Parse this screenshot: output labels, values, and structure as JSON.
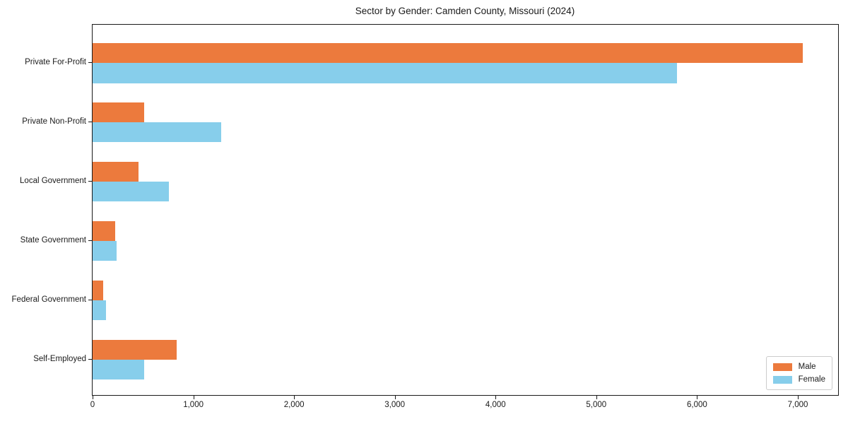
{
  "chart_data": {
    "type": "bar",
    "orientation": "horizontal",
    "title": "Sector by Gender: Camden County, Missouri (2024)",
    "categories": [
      "Private For-Profit",
      "Private Non-Profit",
      "Local Government",
      "State Government",
      "Federal Government",
      "Self-Employed"
    ],
    "series": [
      {
        "name": "Male",
        "color": "#ec7a3d",
        "values": [
          7050,
          510,
          455,
          225,
          105,
          835
        ]
      },
      {
        "name": "Female",
        "color": "#87ceeb",
        "values": [
          5800,
          1275,
          760,
          235,
          135,
          515
        ]
      }
    ],
    "xlabel": "",
    "ylabel": "",
    "xlim": [
      0,
      7400
    ],
    "xticks": [
      0,
      1000,
      2000,
      3000,
      4000,
      5000,
      6000,
      7000
    ],
    "xtick_labels": [
      "0",
      "1,000",
      "2,000",
      "3,000",
      "4,000",
      "5,000",
      "6,000",
      "7,000"
    ],
    "legend": {
      "position": "lower right",
      "entries": [
        "Male",
        "Female"
      ]
    },
    "grid": false,
    "background_color": "#ffffff",
    "spine_color": "#1a1a1a"
  }
}
